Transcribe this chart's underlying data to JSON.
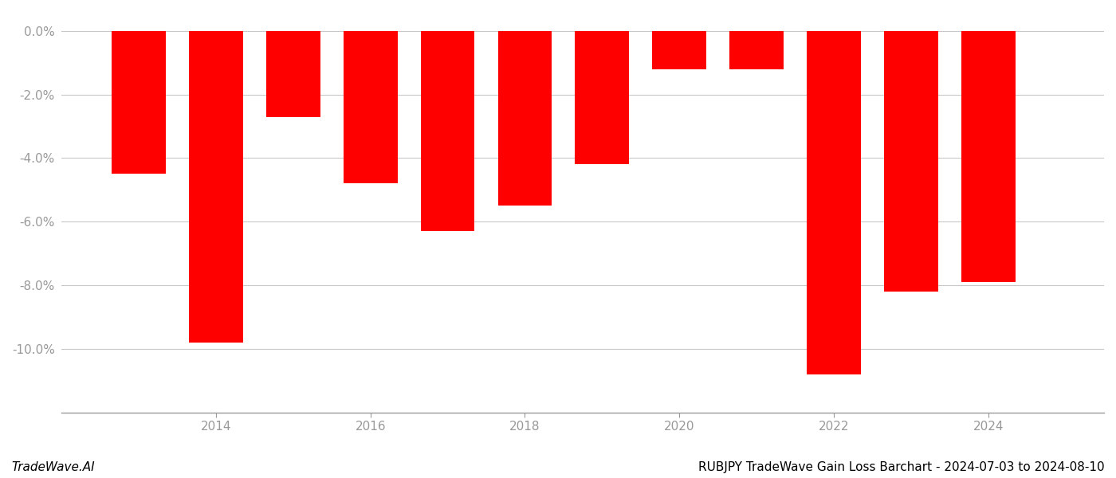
{
  "years": [
    2013,
    2014,
    2015,
    2016,
    2017,
    2018,
    2019,
    2020,
    2021,
    2022,
    2023,
    2024
  ],
  "values": [
    -4.5,
    -9.8,
    -2.7,
    -4.8,
    -6.3,
    -5.5,
    -4.2,
    -1.2,
    -1.2,
    -10.8,
    -8.2,
    -7.9
  ],
  "bar_color": "#ff0000",
  "background_color": "#ffffff",
  "grid_color": "#c8c8c8",
  "axis_color": "#999999",
  "tick_color": "#999999",
  "title": "RUBJPY TradeWave Gain Loss Barchart - 2024-07-03 to 2024-08-10",
  "watermark": "TradeWave.AI",
  "ylim": [
    -12.0,
    0.6
  ],
  "yticks": [
    0.0,
    -2.0,
    -4.0,
    -6.0,
    -8.0,
    -10.0
  ],
  "xtick_labels": [
    "2014",
    "2016",
    "2018",
    "2020",
    "2022",
    "2024"
  ],
  "xtick_positions": [
    2014,
    2016,
    2018,
    2020,
    2022,
    2024
  ],
  "xlim": [
    2012.0,
    2025.5
  ],
  "bar_width": 0.7,
  "title_fontsize": 11,
  "tick_fontsize": 11,
  "watermark_fontsize": 11
}
